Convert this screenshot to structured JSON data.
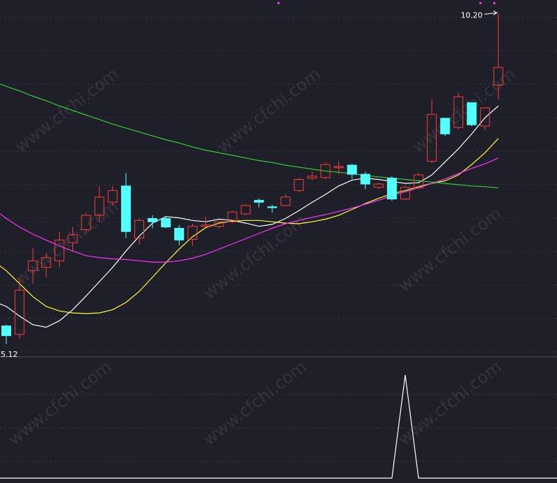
{
  "colors": {
    "background": "#1e1f29",
    "grid": "#3a3c4a",
    "up": "#ff3b3b",
    "down": "#54ffff",
    "ma5": "#ffffff",
    "ma10": "#ffff33",
    "ma20": "#ff33ff",
    "ma60": "#33cc33",
    "indicator": "#ffffff",
    "marker": "#ff33ff",
    "label": "#ffffff",
    "watermark": "#ffffff"
  },
  "watermark": {
    "text": "www.cfchi.com"
  },
  "chart_data": {
    "type": "candlestick",
    "price_range": [
      5.0,
      10.3
    ],
    "label_high": "10.20",
    "label_low": "5.12",
    "candles": [
      {
        "o": 5.4,
        "h": 5.42,
        "l": 5.12,
        "c": 5.25
      },
      {
        "o": 5.27,
        "h": 6.15,
        "l": 5.2,
        "c": 5.95
      },
      {
        "o": 6.25,
        "h": 6.6,
        "l": 6.05,
        "c": 6.4
      },
      {
        "o": 6.3,
        "h": 6.52,
        "l": 6.15,
        "c": 6.45
      },
      {
        "o": 6.4,
        "h": 6.85,
        "l": 6.3,
        "c": 6.72
      },
      {
        "o": 6.68,
        "h": 6.92,
        "l": 6.55,
        "c": 6.8
      },
      {
        "o": 6.88,
        "h": 7.14,
        "l": 6.82,
        "c": 7.1
      },
      {
        "o": 7.1,
        "h": 7.55,
        "l": 7.0,
        "c": 7.38
      },
      {
        "o": 7.3,
        "h": 7.55,
        "l": 7.25,
        "c": 7.48
      },
      {
        "o": 7.55,
        "h": 7.75,
        "l": 6.75,
        "c": 6.85
      },
      {
        "o": 6.75,
        "h": 7.05,
        "l": 6.65,
        "c": 7.02
      },
      {
        "o": 7.05,
        "h": 7.1,
        "l": 6.9,
        "c": 7.0
      },
      {
        "o": 7.05,
        "h": 7.08,
        "l": 6.9,
        "c": 6.92
      },
      {
        "o": 6.9,
        "h": 6.95,
        "l": 6.64,
        "c": 6.72
      },
      {
        "o": 6.73,
        "h": 6.97,
        "l": 6.63,
        "c": 6.93
      },
      {
        "o": 6.93,
        "h": 7.08,
        "l": 6.93,
        "c": 6.95
      },
      {
        "o": 6.93,
        "h": 7.0,
        "l": 6.9,
        "c": 7.0
      },
      {
        "o": 7.0,
        "h": 7.17,
        "l": 6.98,
        "c": 7.15
      },
      {
        "o": 7.12,
        "h": 7.27,
        "l": 7.1,
        "c": 7.25
      },
      {
        "o": 7.33,
        "h": 7.36,
        "l": 7.22,
        "c": 7.3
      },
      {
        "o": 7.23,
        "h": 7.26,
        "l": 7.14,
        "c": 7.22
      },
      {
        "o": 7.25,
        "h": 7.42,
        "l": 7.24,
        "c": 7.38
      },
      {
        "o": 7.48,
        "h": 7.67,
        "l": 7.45,
        "c": 7.65
      },
      {
        "o": 7.67,
        "h": 7.77,
        "l": 7.64,
        "c": 7.7
      },
      {
        "o": 7.68,
        "h": 7.91,
        "l": 7.65,
        "c": 7.88
      },
      {
        "o": 7.83,
        "h": 7.93,
        "l": 7.73,
        "c": 7.85
      },
      {
        "o": 7.87,
        "h": 7.89,
        "l": 7.66,
        "c": 7.73
      },
      {
        "o": 7.73,
        "h": 7.77,
        "l": 7.5,
        "c": 7.58
      },
      {
        "o": 7.53,
        "h": 7.6,
        "l": 7.5,
        "c": 7.58
      },
      {
        "o": 7.67,
        "h": 7.7,
        "l": 7.32,
        "c": 7.35
      },
      {
        "o": 7.35,
        "h": 7.55,
        "l": 7.33,
        "c": 7.53
      },
      {
        "o": 7.52,
        "h": 7.75,
        "l": 7.5,
        "c": 7.72
      },
      {
        "o": 7.93,
        "h": 8.88,
        "l": 7.9,
        "c": 8.65
      },
      {
        "o": 8.59,
        "h": 8.6,
        "l": 8.32,
        "c": 8.35
      },
      {
        "o": 8.45,
        "h": 8.98,
        "l": 8.42,
        "c": 8.92
      },
      {
        "o": 8.83,
        "h": 8.83,
        "l": 8.47,
        "c": 8.49
      },
      {
        "o": 8.47,
        "h": 8.75,
        "l": 8.41,
        "c": 8.75
      },
      {
        "o": 9.1,
        "h": 10.2,
        "l": 8.88,
        "c": 9.37
      }
    ],
    "ma": [
      {
        "key": "ma5",
        "color": "#ffffff",
        "values": [
          5.78,
          5.7,
          5.55,
          5.42,
          5.38,
          5.48,
          5.65,
          5.86,
          6.08,
          6.3,
          6.55,
          6.78,
          6.98,
          7.08,
          7.06,
          7.02,
          7.0,
          7.04,
          7.02,
          6.98,
          6.93,
          6.96,
          7.05,
          7.17,
          7.3,
          7.42,
          7.55,
          7.64,
          7.67,
          7.65,
          7.62,
          7.59,
          7.6,
          7.72,
          7.92,
          8.12,
          8.35,
          8.6,
          8.78
        ]
      },
      {
        "key": "ma10",
        "color": "#ffff33",
        "values": [
          6.55,
          6.4,
          6.25,
          6.05,
          5.85,
          5.7,
          5.63,
          5.6,
          5.59,
          5.6,
          5.65,
          5.76,
          5.93,
          6.15,
          6.37,
          6.58,
          6.77,
          6.91,
          6.98,
          7.01,
          7.02,
          7.02,
          7.0,
          6.98,
          6.97,
          7.0,
          7.04,
          7.1,
          7.19,
          7.28,
          7.36,
          7.43,
          7.48,
          7.54,
          7.59,
          7.63,
          7.72,
          7.88,
          8.06,
          8.28
        ]
      },
      {
        "key": "ma20",
        "color": "#ff33ff",
        "values": [
          7.75,
          7.57,
          7.39,
          7.21,
          7.05,
          6.92,
          6.81,
          6.72,
          6.63,
          6.55,
          6.48,
          6.45,
          6.43,
          6.42,
          6.4,
          6.38,
          6.38,
          6.4,
          6.44,
          6.5,
          6.58,
          6.66,
          6.74,
          6.82,
          6.9,
          6.97,
          7.02,
          7.07,
          7.11,
          7.16,
          7.21,
          7.27,
          7.33,
          7.4,
          7.46,
          7.52,
          7.59,
          7.66,
          7.74,
          7.82,
          7.89,
          7.98
        ]
      },
      {
        "key": "ma60",
        "color": "#33cc33",
        "values": [
          9.32,
          9.24,
          9.16,
          9.08,
          9.01,
          8.93,
          8.86,
          8.78,
          8.71,
          8.64,
          8.57,
          8.5,
          8.44,
          8.38,
          8.32,
          8.26,
          8.21,
          8.15,
          8.1,
          8.06,
          8.02,
          7.98,
          7.94,
          7.91,
          7.87,
          7.84,
          7.81,
          7.78,
          7.76,
          7.74,
          7.71,
          7.69,
          7.67,
          7.65,
          7.63,
          7.61,
          7.59,
          7.57,
          7.55,
          7.54,
          7.52
        ]
      }
    ],
    "indicator": {
      "range": [
        0,
        1
      ],
      "values": [
        0,
        0,
        0,
        0,
        0,
        0,
        0,
        0,
        0,
        0,
        0,
        0,
        0,
        0,
        0,
        0,
        0,
        0,
        0,
        0,
        0,
        0,
        0,
        0,
        0,
        0,
        0,
        0,
        0,
        0,
        1,
        0,
        0,
        0,
        0,
        0,
        0,
        0,
        0
      ]
    },
    "top_markers": [
      400,
      690,
      710
    ]
  }
}
